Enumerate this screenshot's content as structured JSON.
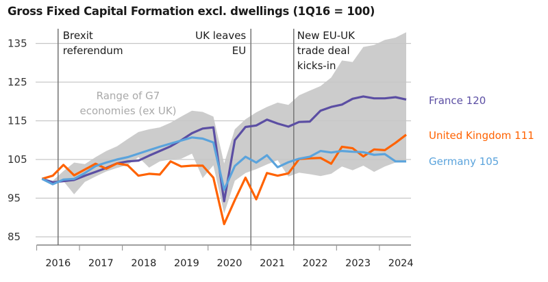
{
  "chart_data": {
    "type": "line",
    "title": "Gross Fixed Capital Formation excl. dwellings (1Q16 = 100)",
    "xlabel": "",
    "ylabel": "",
    "ylim": [
      83,
      139
    ],
    "yticks": [
      85,
      95,
      105,
      115,
      125,
      135
    ],
    "grid": true,
    "x_year_labels": [
      "2016",
      "2017",
      "2018",
      "2019",
      "2020",
      "2021",
      "2022",
      "2023",
      "2024"
    ],
    "x": [
      "2016Q1",
      "2016Q2",
      "2016Q3",
      "2016Q4",
      "2017Q1",
      "2017Q2",
      "2017Q3",
      "2017Q4",
      "2018Q1",
      "2018Q2",
      "2018Q3",
      "2018Q4",
      "2019Q1",
      "2019Q2",
      "2019Q3",
      "2019Q4",
      "2020Q1",
      "2020Q2",
      "2020Q3",
      "2020Q4",
      "2021Q1",
      "2021Q2",
      "2021Q3",
      "2021Q4",
      "2022Q1",
      "2022Q2",
      "2022Q3",
      "2022Q4",
      "2023Q1",
      "2023Q2",
      "2023Q3",
      "2023Q4",
      "2024Q1",
      "2024Q2",
      "2024Q3"
    ],
    "series": [
      {
        "name": "France",
        "label": "France 120",
        "color": "#5b4ea3",
        "values": [
          100,
          99.1,
          99.4,
          99.7,
          100.8,
          101.8,
          102.8,
          104.0,
          104.5,
          104.7,
          106.0,
          107.2,
          108.4,
          110.0,
          111.8,
          113.0,
          113.3,
          94.2,
          110.0,
          113.4,
          113.8,
          115.3,
          114.3,
          113.5,
          114.7,
          114.8,
          117.6,
          118.6,
          119.2,
          120.7,
          121.3,
          120.8,
          120.8,
          121.1,
          120.5
        ]
      },
      {
        "name": "United Kingdom",
        "label": "United Kingdom 111",
        "color": "#ff6200",
        "values": [
          100,
          100.8,
          103.6,
          100.9,
          102.4,
          103.9,
          102.6,
          104.0,
          103.5,
          100.8,
          101.3,
          101.1,
          104.5,
          103.2,
          103.4,
          103.4,
          100.3,
          88.3,
          94.5,
          100.3,
          94.7,
          101.5,
          100.8,
          101.4,
          105.1,
          105.3,
          105.4,
          103.9,
          108.3,
          107.9,
          105.8,
          107.6,
          107.4,
          109.3,
          111.4
        ]
      },
      {
        "name": "Germany",
        "label": "Germany 105",
        "color": "#5aa3dc",
        "values": [
          100,
          98.6,
          99.8,
          100.0,
          101.5,
          103.3,
          104.2,
          105.0,
          105.6,
          106.5,
          107.4,
          108.3,
          109.1,
          109.9,
          110.7,
          110.4,
          109.4,
          97.2,
          103.3,
          105.7,
          104.2,
          106.1,
          103.0,
          104.3,
          105.2,
          105.7,
          107.2,
          106.8,
          107.2,
          107.0,
          106.9,
          106.2,
          106.4,
          104.5,
          104.5
        ]
      }
    ],
    "range_band": {
      "name": "Range of G7 economies (ex UK)",
      "color": "#cccccc",
      "upper": [
        100,
        99.5,
        102.0,
        104.2,
        103.8,
        105.6,
        107.2,
        108.4,
        110.3,
        112.1,
        112.8,
        113.3,
        114.5,
        116.1,
        117.6,
        117.3,
        116.1,
        104.0,
        112.8,
        115.4,
        117.2,
        118.6,
        119.7,
        119.1,
        121.6,
        122.8,
        124.0,
        126.2,
        130.6,
        130.2,
        134.1,
        134.6,
        135.9,
        136.5,
        137.9
      ],
      "lower": [
        100,
        98.4,
        99.4,
        96.0,
        99.2,
        100.6,
        101.9,
        102.8,
        103.6,
        105.6,
        102.9,
        104.5,
        105.0,
        105.2,
        106.5,
        100.2,
        103.5,
        91.0,
        99.5,
        101.5,
        102.5,
        103.7,
        104.8,
        100.6,
        101.6,
        101.2,
        100.7,
        101.3,
        103.2,
        102.2,
        103.4,
        101.8,
        103.2,
        104.2,
        104.2
      ]
    },
    "annotations": [
      {
        "text": [
          "Brexit",
          "referendum"
        ],
        "at": "2016Q2/Q3 boundary",
        "align": "left"
      },
      {
        "text": [
          "UK leaves",
          "EU"
        ],
        "at": "2021 start",
        "align": "right"
      },
      {
        "text": [
          "New EU-UK",
          "trade deal",
          "kicks-in"
        ],
        "at": "2022 start",
        "align": "left"
      }
    ],
    "range_label": [
      "Range of G7",
      "economies (ex UK)"
    ],
    "legend": "right, inline labels"
  }
}
